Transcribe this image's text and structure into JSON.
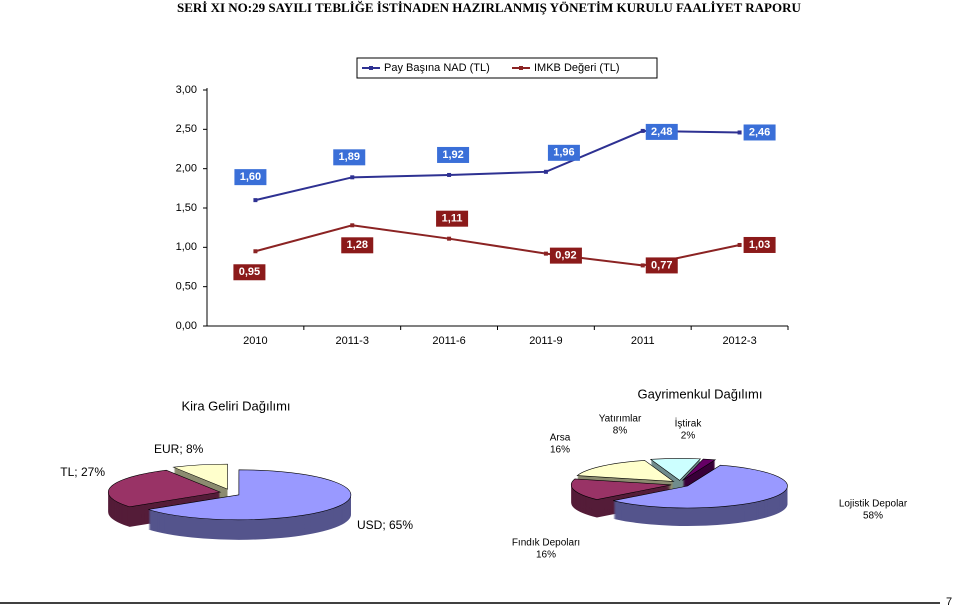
{
  "header": {
    "title": "SERİ XI NO:29 SAYILI TEBLİĞE İSTİNADEN HAZIRLANMIŞ YÖNETİM KURULU FAALİYET RAPORU"
  },
  "page_number": "7",
  "chart_data": [
    {
      "type": "line",
      "categories": [
        "2010",
        "2011-3",
        "2011-6",
        "2011-9",
        "2011",
        "2012-3"
      ],
      "series": [
        {
          "name": "Pay Başına NAD (TL)",
          "color": "#2e3192",
          "label_color": "#3a6fd8",
          "values": [
            1.6,
            1.89,
            1.92,
            1.96,
            2.48,
            2.46
          ],
          "value_labels": [
            "1,60",
            "1,89",
            "1,92",
            "1,96",
            "2,48",
            "2,46"
          ]
        },
        {
          "name": "IMKB Değeri (TL)",
          "color": "#8b2323",
          "label_color": "#8b1a1a",
          "values": [
            0.95,
            1.28,
            1.11,
            0.92,
            0.77,
            1.03
          ],
          "value_labels": [
            "0,95",
            "1,28",
            "1,11",
            "0,92",
            "0,77",
            "1,03"
          ]
        }
      ],
      "ylim": [
        0,
        3
      ],
      "yticks": [
        {
          "value": 0,
          "label": "0,00"
        },
        {
          "value": 0.5,
          "label": "0,50"
        },
        {
          "value": 1,
          "label": "1,00"
        },
        {
          "value": 1.5,
          "label": "1,50"
        },
        {
          "value": 2,
          "label": "2,00"
        },
        {
          "value": 2.5,
          "label": "2,50"
        },
        {
          "value": 3,
          "label": "3,00"
        }
      ],
      "legend": "top"
    },
    {
      "type": "pie3d",
      "title": "Kira Geliri Dağılımı",
      "categories": [
        "USD",
        "TL",
        "EUR"
      ],
      "values": [
        65,
        27,
        8
      ],
      "value_labels": [
        "USD; 65%",
        "TL; 27%",
        "EUR; 8%"
      ],
      "colors": [
        "#9999ff",
        "#993366",
        "#ffffcc"
      ]
    },
    {
      "type": "pie3d",
      "title": "Gayrimenkul Dağılımı",
      "categories": [
        "İştirak",
        "Lojistik Depolar",
        "Fındık Depoları",
        "Arsa",
        "Yatırımlar"
      ],
      "values": [
        2,
        58,
        16,
        16,
        8
      ],
      "value_labels": [
        "2%",
        "58%",
        "16%",
        "16%",
        "8%"
      ],
      "colors": [
        "#660066",
        "#9999ff",
        "#993366",
        "#ffffcc",
        "#ccffff"
      ]
    }
  ]
}
